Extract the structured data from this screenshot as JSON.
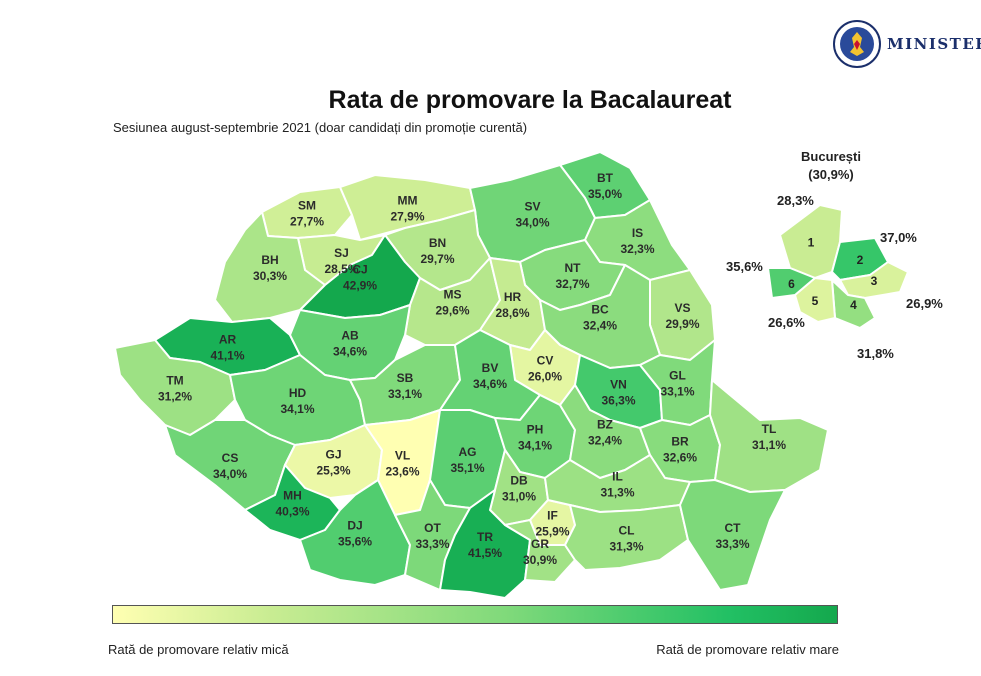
{
  "header": {
    "brand": "MINISTERUL",
    "seal_text": "GUVERNUL ROMÂNIEI"
  },
  "title": "Rata de promovare la Bacalaureat",
  "subtitle": "Sesiunea august-septembrie 2021 (doar candidați din promoție curentă)",
  "legend": {
    "low": "Rată de promovare relativ mică",
    "high": "Rată de promovare relativ mare",
    "color_low": "#ffffb2",
    "color_high": "#14a84d"
  },
  "counties": [
    {
      "code": "SM",
      "rate": "27,7%",
      "value": 27.7
    },
    {
      "code": "MM",
      "rate": "27,9%",
      "value": 27.9
    },
    {
      "code": "BT",
      "rate": "35,0%",
      "value": 35.0
    },
    {
      "code": "SV",
      "rate": "34,0%",
      "value": 34.0
    },
    {
      "code": "SJ",
      "rate": "28,5%",
      "value": 28.5
    },
    {
      "code": "BN",
      "rate": "29,7%",
      "value": 29.7
    },
    {
      "code": "IS",
      "rate": "32,3%",
      "value": 32.3
    },
    {
      "code": "BH",
      "rate": "30,3%",
      "value": 30.3
    },
    {
      "code": "CJ",
      "rate": "42,9%",
      "value": 42.9
    },
    {
      "code": "NT",
      "rate": "32,7%",
      "value": 32.7
    },
    {
      "code": "MS",
      "rate": "29,6%",
      "value": 29.6
    },
    {
      "code": "HR",
      "rate": "28,6%",
      "value": 28.6
    },
    {
      "code": "VS",
      "rate": "29,9%",
      "value": 29.9
    },
    {
      "code": "AR",
      "rate": "41,1%",
      "value": 41.1
    },
    {
      "code": "AB",
      "rate": "34,6%",
      "value": 34.6
    },
    {
      "code": "BC",
      "rate": "32,4%",
      "value": 32.4
    },
    {
      "code": "CV",
      "rate": "26,0%",
      "value": 26.0
    },
    {
      "code": "TM",
      "rate": "31,2%",
      "value": 31.2
    },
    {
      "code": "HD",
      "rate": "34,1%",
      "value": 34.1
    },
    {
      "code": "SB",
      "rate": "33,1%",
      "value": 33.1
    },
    {
      "code": "BV",
      "rate": "34,6%",
      "value": 34.6
    },
    {
      "code": "VN",
      "rate": "36,3%",
      "value": 36.3
    },
    {
      "code": "GL",
      "rate": "33,1%",
      "value": 33.1
    },
    {
      "code": "CS",
      "rate": "34,0%",
      "value": 34.0
    },
    {
      "code": "GJ",
      "rate": "25,3%",
      "value": 25.3
    },
    {
      "code": "VL",
      "rate": "23,6%",
      "value": 23.6
    },
    {
      "code": "AG",
      "rate": "35,1%",
      "value": 35.1
    },
    {
      "code": "PH",
      "rate": "34,1%",
      "value": 34.1
    },
    {
      "code": "BZ",
      "rate": "32,4%",
      "value": 32.4
    },
    {
      "code": "BR",
      "rate": "32,6%",
      "value": 32.6
    },
    {
      "code": "TL",
      "rate": "31,1%",
      "value": 31.1
    },
    {
      "code": "MH",
      "rate": "40,3%",
      "value": 40.3
    },
    {
      "code": "DB",
      "rate": "31,0%",
      "value": 31.0
    },
    {
      "code": "IF",
      "rate": "25,9%",
      "value": 25.9
    },
    {
      "code": "IL",
      "rate": "31,3%",
      "value": 31.3
    },
    {
      "code": "DJ",
      "rate": "35,6%",
      "value": 35.6
    },
    {
      "code": "OT",
      "rate": "33,3%",
      "value": 33.3
    },
    {
      "code": "TR",
      "rate": "41,5%",
      "value": 41.5
    },
    {
      "code": "GR",
      "rate": "30,9%",
      "value": 30.9
    },
    {
      "code": "CL",
      "rate": "31,3%",
      "value": 31.3
    },
    {
      "code": "CT",
      "rate": "33,3%",
      "value": 33.3
    }
  ],
  "bucuresti": {
    "title": "București",
    "total": "(30,9%)",
    "sectors": [
      {
        "num": "1",
        "rate": "28,3%",
        "value": 28.3
      },
      {
        "num": "2",
        "rate": "37,0%",
        "value": 37.0
      },
      {
        "num": "3",
        "rate": "26,9%",
        "value": 26.9
      },
      {
        "num": "4",
        "rate": "31,8%",
        "value": 31.8
      },
      {
        "num": "5",
        "rate": "26,6%",
        "value": 26.6
      },
      {
        "num": "6",
        "rate": "35,6%",
        "value": 35.6
      }
    ]
  }
}
